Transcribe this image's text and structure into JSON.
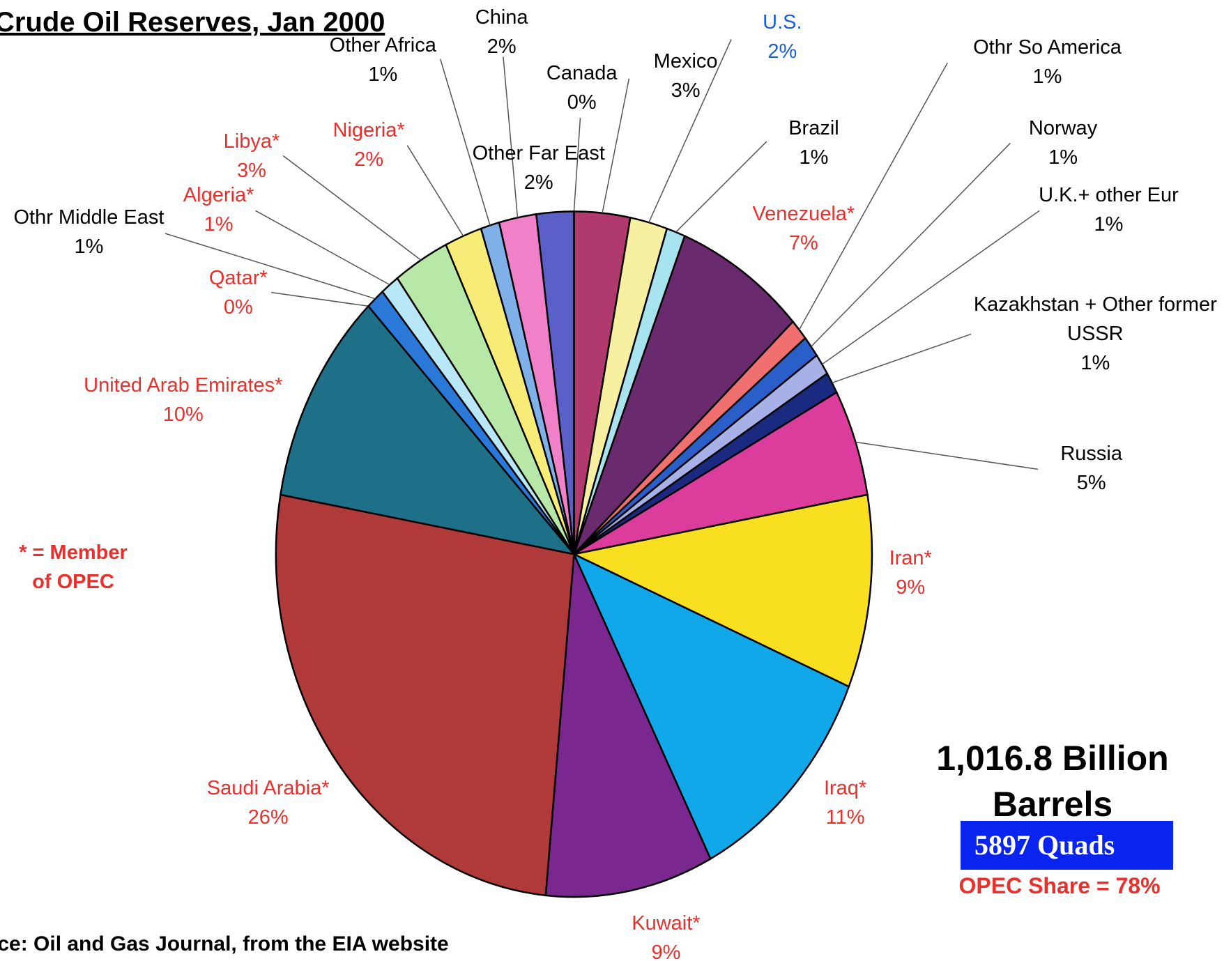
{
  "chart_data": {
    "type": "pie",
    "title": "Crude Oil Reserves, Jan 2000",
    "note": "* = Member of OPEC",
    "total": "1,016.8 Billion Barrels",
    "quads": "5897 Quads",
    "opec_share": "OPEC Share = 78%",
    "source": "Source:  Oil and Gas Journal, from the EIA website",
    "categories": [
      "Canada",
      "Mexico",
      "U.S.",
      "Brazil",
      "Venezuela*",
      "Othr So America",
      "Norway",
      "U.K.+ other Eur",
      "Kazakhstan + Other former USSR",
      "Russia",
      "Iran*",
      "Iraq*",
      "Kuwait*",
      "Saudi Arabia*",
      "United Arab Emirates*",
      "Qatar*",
      "Othr Middle East",
      "Algeria*",
      "Libya*",
      "Nigeria*",
      "Other Africa",
      "China",
      "Other Far East"
    ],
    "values": [
      0,
      3,
      2,
      1,
      7,
      1,
      1,
      1,
      1,
      5,
      9,
      11,
      9,
      26,
      10,
      0,
      1,
      1,
      3,
      2,
      1,
      2,
      2
    ],
    "value_labels": [
      "0%",
      "3%",
      "2%",
      "1%",
      "7%",
      "1%",
      "1%",
      "1%",
      "1%",
      "5%",
      "9%",
      "11%",
      "9%",
      "26%",
      "10%",
      "0%",
      "1%",
      "1%",
      "3%",
      "2%",
      "1%",
      "2%",
      "2%"
    ],
    "colors": [
      "#2a2a8a",
      "#b03a6e",
      "#f7f0a0",
      "#a8e4f0",
      "#6a2a6e",
      "#f07070",
      "#2a5ec8",
      "#a8b0e8",
      "#1a2a80",
      "#dc3c9c",
      "#f8e020",
      "#10a8e8",
      "#7a2890",
      "#b03a3a",
      "#1e7088",
      "#1a2a80",
      "#2a78d8",
      "#b8e8f8",
      "#b8e8a8",
      "#f8ec78",
      "#80b0e8",
      "#f080c8",
      "#5a60c8"
    ],
    "label_colors": [
      "#000000",
      "#000000",
      "#1a5ed8",
      "#000000",
      "#e8302c",
      "#000000",
      "#000000",
      "#000000",
      "#000000",
      "#000000",
      "#e8302c",
      "#e8302c",
      "#e8302c",
      "#e8302c",
      "#e8302c",
      "#e8302c",
      "#000000",
      "#e8302c",
      "#e8302c",
      "#e8302c",
      "#000000",
      "#000000",
      "#000000"
    ]
  }
}
